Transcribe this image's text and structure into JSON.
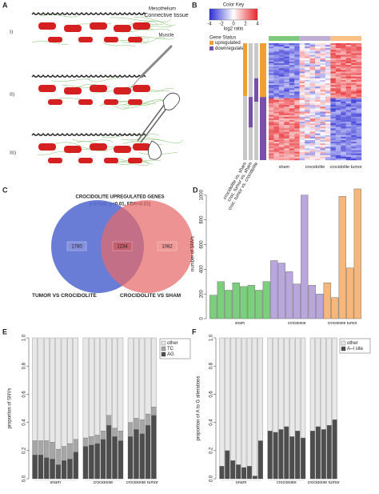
{
  "panel_a": {
    "label": "A",
    "stages": [
      "I)",
      "II)",
      "III)"
    ],
    "layers": [
      "Mesothelium",
      "Connective tissue",
      "Muscle"
    ]
  },
  "panel_b": {
    "label": "B",
    "color_key": {
      "title": "Color Key",
      "range": [
        -4,
        4
      ],
      "ticks": [
        -4,
        -2,
        0,
        2,
        4
      ],
      "label": "log2 ratio",
      "colors": [
        "#2b2bd6",
        "#ffffff",
        "#e8262b"
      ]
    },
    "gene_status": {
      "title": "Gene Status",
      "items": [
        {
          "name": "upregulated",
          "color": "#f0a030"
        },
        {
          "name": "downregulated",
          "color": "#7a4fa8"
        }
      ]
    },
    "row_labels": [
      "crocidolite vs. sham",
      "croc. tumor vs. sham",
      "croc. tumor vs. crocidolite"
    ],
    "groups": [
      {
        "name": "sham",
        "color": "#7fc97f"
      },
      {
        "name": "crocidolite",
        "color": "#beaed4"
      },
      {
        "name": "crocidolite tumor",
        "color": "#fdc086"
      }
    ]
  },
  "panel_c": {
    "label": "C",
    "title": "CROCIDOLITE UPREGULATED GENES",
    "subtitle": "(>2-fold, p<0.01, FDR<0.01)",
    "sets": [
      {
        "name": "TUMOR VS CROCIDOLITE",
        "color": "#5a6fd1"
      },
      {
        "name": "CROCIDOLITE VS SHAM",
        "color": "#e86a6a"
      }
    ],
    "counts": {
      "only_first": 1780,
      "both": 1234,
      "only_second": 1082
    }
  },
  "chart_data": [
    {
      "type": "bar",
      "label": "D",
      "y_label": "number of SNVs",
      "ylim": [
        0,
        1050
      ],
      "yticks": [
        0,
        200,
        400,
        600,
        800,
        1000
      ],
      "groups": [
        {
          "name": "sham",
          "color": "#7ccf7c",
          "values": [
            190,
            300,
            230,
            290,
            260,
            270,
            230,
            300
          ]
        },
        {
          "name": "crocidolite",
          "color": "#b9a6dc",
          "values": [
            470,
            450,
            380,
            280,
            1000,
            270,
            200
          ]
        },
        {
          "name": "crocidolite tumor",
          "color": "#f7b77a",
          "values": [
            290,
            170,
            990,
            410,
            1050
          ]
        }
      ]
    },
    {
      "type": "stacked_bar",
      "label": "E",
      "y_label": "proportion of SNVs",
      "ylim": [
        0,
        1
      ],
      "yticks": [
        {
          "value": 0,
          "label": "0.0"
        },
        0.2,
        0.4,
        0.6,
        0.8,
        {
          "value": 1,
          "label": "1.0"
        }
      ],
      "legend": "top right",
      "series": [
        {
          "name": "other",
          "color": "#e8e8e8"
        },
        {
          "name": "TC",
          "color": "#a6a6a6"
        },
        {
          "name": "AG",
          "color": "#4d4d4d"
        }
      ],
      "groups": [
        {
          "name": "sham",
          "values": [
            [
              0.73,
              0.73,
              0.73,
              0.74,
              0.79,
              0.77,
              0.75,
              0.72
            ],
            [
              0.1,
              0.1,
              0.12,
              0.12,
              0.11,
              0.1,
              0.11,
              0.09
            ],
            [
              0.17,
              0.17,
              0.15,
              0.14,
              0.1,
              0.13,
              0.14,
              0.19
            ]
          ]
        },
        {
          "name": "crocidolite",
          "values": [
            [
              0.71,
              0.7,
              0.69,
              0.66,
              0.55,
              0.64,
              0.66
            ],
            [
              0.06,
              0.06,
              0.06,
              0.06,
              0.07,
              0.06,
              0.07
            ],
            [
              0.23,
              0.24,
              0.25,
              0.28,
              0.38,
              0.3,
              0.27
            ]
          ]
        },
        {
          "name": "crocidolite tumor",
          "values": [
            [
              0.6,
              0.57,
              0.58,
              0.54,
              0.49
            ],
            [
              0.1,
              0.08,
              0.1,
              0.08,
              0.06
            ],
            [
              0.3,
              0.35,
              0.32,
              0.38,
              0.45
            ]
          ]
        }
      ]
    },
    {
      "type": "stacked_bar",
      "label": "F",
      "y_label": "proportion of A to G alterations",
      "ylim": [
        0,
        1
      ],
      "yticks": [
        {
          "value": 0,
          "label": "0.0"
        },
        0.2,
        0.4,
        0.6,
        0.8,
        {
          "value": 1,
          "label": "1.0"
        }
      ],
      "legend": "top right",
      "series": [
        {
          "name": "other",
          "color": "#e8e8e8"
        },
        {
          "name": "A–I site",
          "color": "#4d4d4d"
        }
      ],
      "groups": [
        {
          "name": "sham",
          "values": [
            [
              0.91,
              0.8,
              0.87,
              0.9,
              0.92,
              0.91,
              0.98,
              0.73
            ],
            [
              0.09,
              0.2,
              0.13,
              0.1,
              0.08,
              0.09,
              0.02,
              0.27
            ]
          ]
        },
        {
          "name": "crocidolite",
          "values": [
            [
              0.66,
              0.67,
              0.65,
              0.63,
              0.7,
              0.66,
              0.71
            ],
            [
              0.34,
              0.33,
              0.35,
              0.37,
              0.3,
              0.34,
              0.29
            ]
          ]
        },
        {
          "name": "crocidolite tumor",
          "values": [
            [
              0.66,
              0.63,
              0.65,
              0.62,
              0.58
            ],
            [
              0.34,
              0.37,
              0.35,
              0.38,
              0.42
            ]
          ]
        }
      ]
    }
  ]
}
